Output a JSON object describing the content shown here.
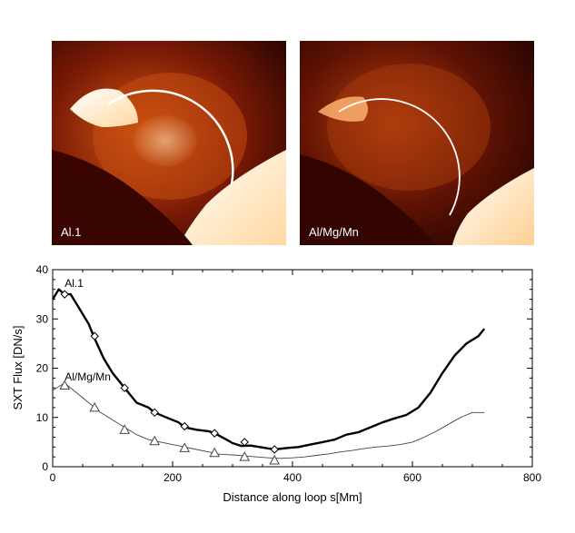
{
  "images": [
    {
      "label": "Al.1"
    },
    {
      "label": "Al/Mg/Mn"
    }
  ],
  "chart_data": {
    "type": "line",
    "title": "",
    "xlabel": "Distance along loop  s[Mm]",
    "ylabel": "SXT Flux  [DN/s]",
    "xlim": [
      0,
      800
    ],
    "ylim": [
      0,
      40
    ],
    "x_ticks": [
      "0",
      "200",
      "400",
      "600",
      "800"
    ],
    "y_ticks": [
      "0",
      "10",
      "20",
      "30",
      "40"
    ],
    "grid": false,
    "series": [
      {
        "name": "Al.1",
        "label_at": [
          20,
          36.5
        ],
        "x": [
          0,
          10,
          20,
          30,
          45,
          60,
          70,
          85,
          100,
          120,
          140,
          160,
          170,
          190,
          210,
          220,
          240,
          260,
          270,
          290,
          300,
          315,
          330,
          345,
          370,
          390,
          410,
          430,
          450,
          470,
          490,
          510,
          530,
          550,
          570,
          590,
          610,
          630,
          650,
          670,
          690,
          710,
          720
        ],
        "y": [
          34,
          36,
          35,
          35,
          32,
          29,
          26,
          22,
          19,
          16,
          13,
          12,
          11,
          10,
          9,
          8,
          7.5,
          7.2,
          6.8,
          5.5,
          4.8,
          4.2,
          4.3,
          4.0,
          3.5,
          3.8,
          4.0,
          4.5,
          5.0,
          5.5,
          6.5,
          7.0,
          8.0,
          9.0,
          9.8,
          10.5,
          12.0,
          15.0,
          19.0,
          22.5,
          25.0,
          26.5,
          28.0
        ],
        "markers": [
          [
            20,
            35
          ],
          [
            70,
            26.5
          ],
          [
            120,
            16
          ],
          [
            170,
            11
          ],
          [
            220,
            8.2
          ],
          [
            270,
            6.8
          ],
          [
            320,
            5
          ],
          [
            370,
            3.5
          ]
        ],
        "marker_symbol": "diamond"
      },
      {
        "name": "Al/Mg/Mn",
        "label_at": [
          20,
          17.5
        ],
        "x": [
          0,
          20,
          40,
          60,
          80,
          100,
          120,
          140,
          160,
          180,
          200,
          220,
          240,
          260,
          280,
          300,
          320,
          340,
          360,
          380,
          400,
          420,
          440,
          460,
          480,
          500,
          520,
          540,
          560,
          580,
          600,
          620,
          640,
          660,
          680,
          700,
          720
        ],
        "y": [
          15.5,
          17.0,
          15.0,
          13.0,
          11.0,
          9.5,
          8.0,
          6.5,
          5.5,
          5.0,
          4.5,
          4.0,
          3.5,
          3.0,
          2.5,
          2.4,
          2.2,
          2.0,
          1.8,
          1.7,
          1.8,
          2.0,
          2.3,
          2.6,
          3.0,
          3.3,
          3.7,
          4.0,
          4.2,
          4.5,
          5.0,
          6.0,
          7.2,
          8.6,
          10.0,
          11.0,
          11.0
        ],
        "markers": [
          [
            20,
            16.5
          ],
          [
            70,
            12
          ],
          [
            120,
            7.5
          ],
          [
            170,
            5.2
          ],
          [
            220,
            3.8
          ],
          [
            270,
            2.8
          ],
          [
            320,
            2.0
          ],
          [
            370,
            1.3
          ]
        ],
        "marker_symbol": "triangle"
      }
    ]
  }
}
